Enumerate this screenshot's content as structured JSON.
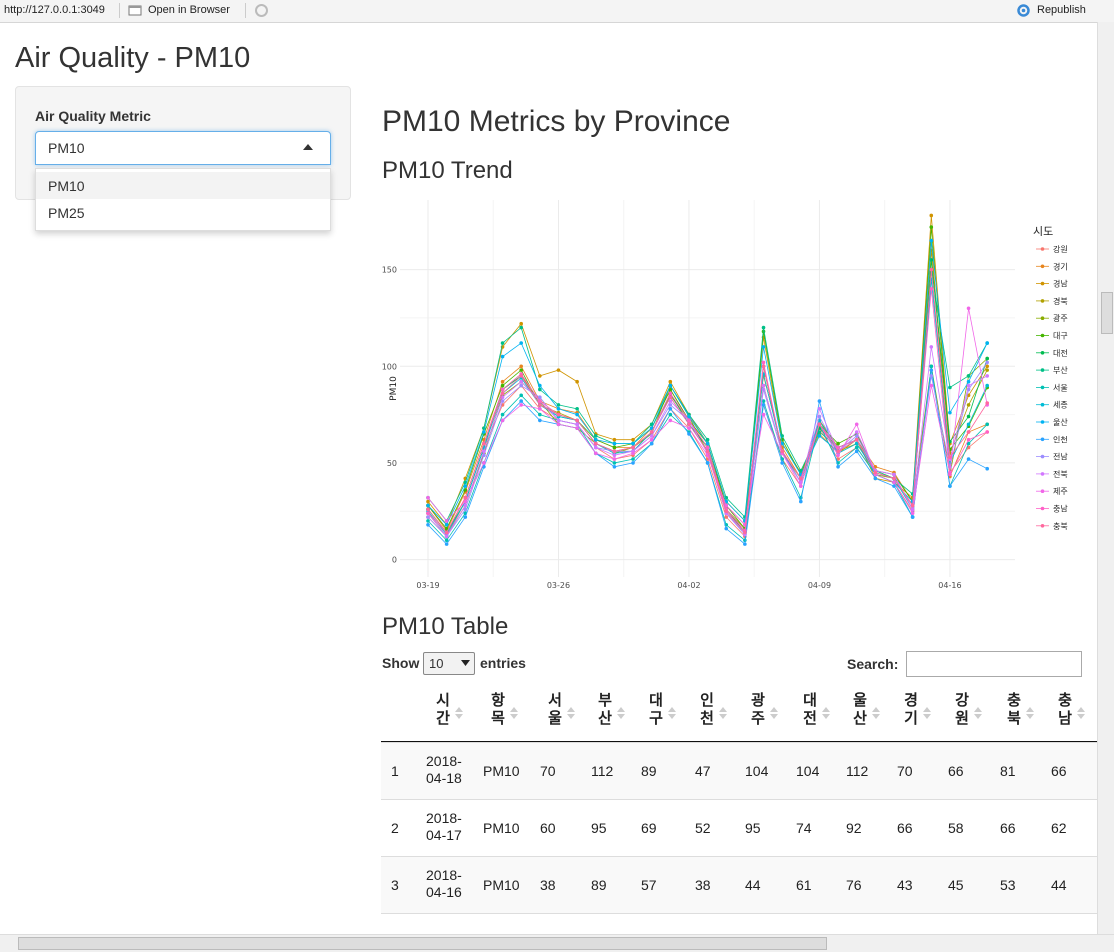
{
  "toolbar": {
    "url": "http://127.0.0.1:3049",
    "open_in_browser": "Open in Browser",
    "republish": "Republish"
  },
  "app_title": "Air Quality - PM10",
  "sidebar": {
    "label": "Air Quality Metric",
    "selected": "PM10",
    "options": [
      "PM10",
      "PM25"
    ]
  },
  "main_heading": "PM10 Metrics by Province",
  "trend_heading": "PM10 Trend",
  "table_heading": "PM10 Table",
  "chart_data": {
    "type": "line",
    "y_label": "PM10",
    "legend_title": "시도",
    "x": [
      "03-19",
      "03-20",
      "03-21",
      "03-22",
      "03-23",
      "03-24",
      "03-25",
      "03-26",
      "03-27",
      "03-28",
      "03-29",
      "03-30",
      "03-31",
      "04-01",
      "04-02",
      "04-03",
      "04-04",
      "04-05",
      "04-06",
      "04-07",
      "04-08",
      "04-09",
      "04-10",
      "04-11",
      "04-12",
      "04-13",
      "04-14",
      "04-15",
      "04-16",
      "04-17",
      "04-18"
    ],
    "ylim": [
      -9,
      186
    ],
    "yticks": [
      0,
      50,
      100,
      150
    ],
    "grid": true,
    "series": [
      {
        "name": "강원",
        "color": "#F8766D",
        "values": [
          22,
          12,
          30,
          58,
          80,
          90,
          78,
          72,
          70,
          58,
          52,
          54,
          62,
          78,
          68,
          52,
          22,
          12,
          80,
          52,
          38,
          68,
          52,
          58,
          44,
          40,
          25,
          150,
          45,
          58,
          66
        ]
      },
      {
        "name": "경기",
        "color": "#E7851E",
        "values": [
          28,
          15,
          35,
          62,
          92,
          100,
          82,
          78,
          76,
          62,
          58,
          58,
          68,
          88,
          72,
          58,
          28,
          18,
          95,
          58,
          42,
          72,
          58,
          62,
          48,
          45,
          30,
          165,
          43,
          66,
          70
        ]
      },
      {
        "name": "경남",
        "color": "#D09400",
        "values": [
          30,
          18,
          42,
          68,
          110,
          122,
          95,
          98,
          92,
          65,
          62,
          62,
          70,
          92,
          75,
          60,
          30,
          20,
          115,
          60,
          45,
          65,
          55,
          62,
          42,
          40,
          32,
          178,
          60,
          85,
          100
        ]
      },
      {
        "name": "경북",
        "color": "#B2A100",
        "values": [
          26,
          14,
          32,
          60,
          88,
          96,
          80,
          76,
          72,
          60,
          56,
          56,
          66,
          85,
          72,
          56,
          26,
          16,
          100,
          55,
          40,
          70,
          56,
          60,
          46,
          42,
          28,
          160,
          55,
          80,
          98
        ]
      },
      {
        "name": "광주",
        "color": "#89AC00",
        "values": [
          24,
          12,
          28,
          55,
          85,
          92,
          82,
          70,
          68,
          60,
          55,
          58,
          65,
          90,
          74,
          55,
          24,
          14,
          90,
          55,
          42,
          72,
          58,
          62,
          44,
          42,
          28,
          100,
          44,
          95,
          104
        ]
      },
      {
        "name": "대구",
        "color": "#45B500",
        "values": [
          28,
          16,
          36,
          65,
          90,
          98,
          80,
          75,
          72,
          62,
          58,
          60,
          68,
          88,
          72,
          60,
          28,
          16,
          118,
          62,
          44,
          70,
          60,
          65,
          46,
          44,
          30,
          172,
          57,
          69,
          89
        ]
      },
      {
        "name": "대전",
        "color": "#00BC51",
        "values": [
          26,
          14,
          30,
          58,
          88,
          95,
          80,
          74,
          72,
          60,
          56,
          58,
          66,
          86,
          70,
          58,
          26,
          14,
          100,
          56,
          42,
          68,
          58,
          62,
          45,
          42,
          28,
          155,
          61,
          74,
          104
        ]
      },
      {
        "name": "부산",
        "color": "#00C087",
        "values": [
          32,
          20,
          40,
          68,
          112,
          120,
          88,
          80,
          78,
          64,
          60,
          60,
          70,
          90,
          75,
          62,
          32,
          22,
          120,
          64,
          46,
          66,
          58,
          62,
          46,
          42,
          34,
          150,
          89,
          95,
          112
        ]
      },
      {
        "name": "서울",
        "color": "#00C0B2",
        "values": [
          20,
          10,
          24,
          50,
          75,
          85,
          75,
          72,
          70,
          55,
          50,
          52,
          60,
          75,
          66,
          50,
          18,
          10,
          82,
          52,
          32,
          70,
          50,
          58,
          44,
          40,
          22,
          100,
          38,
          60,
          70
        ]
      },
      {
        "name": "세종",
        "color": "#00BCD6",
        "values": [
          25,
          13,
          30,
          58,
          86,
          94,
          80,
          74,
          72,
          60,
          55,
          56,
          66,
          84,
          70,
          56,
          24,
          13,
          96,
          56,
          40,
          72,
          55,
          60,
          45,
          42,
          26,
          145,
          50,
          70,
          90
        ]
      },
      {
        "name": "울산",
        "color": "#00B3F2",
        "values": [
          28,
          18,
          38,
          66,
          105,
          112,
          90,
          78,
          75,
          62,
          60,
          60,
          68,
          90,
          74,
          60,
          30,
          20,
          110,
          60,
          44,
          64,
          56,
          62,
          44,
          40,
          30,
          165,
          76,
          92,
          112
        ]
      },
      {
        "name": "인천",
        "color": "#29A3FF",
        "values": [
          18,
          8,
          22,
          48,
          72,
          82,
          72,
          70,
          68,
          55,
          48,
          50,
          60,
          78,
          65,
          50,
          16,
          8,
          80,
          50,
          30,
          82,
          48,
          56,
          42,
          38,
          22,
          98,
          38,
          52,
          47
        ]
      },
      {
        "name": "전남",
        "color": "#9C8DFF",
        "values": [
          22,
          12,
          26,
          54,
          82,
          90,
          84,
          72,
          70,
          58,
          56,
          56,
          64,
          80,
          72,
          55,
          24,
          14,
          88,
          55,
          40,
          74,
          56,
          64,
          46,
          44,
          26,
          95,
          48,
          88,
          102
        ]
      },
      {
        "name": "전북",
        "color": "#D277FF",
        "values": [
          24,
          12,
          28,
          56,
          84,
          92,
          82,
          72,
          70,
          58,
          54,
          56,
          64,
          82,
          72,
          55,
          24,
          13,
          90,
          55,
          40,
          78,
          56,
          66,
          46,
          44,
          26,
          110,
          52,
          90,
          95
        ]
      },
      {
        "name": "제주",
        "color": "#F166E8",
        "values": [
          32,
          20,
          30,
          50,
          72,
          80,
          78,
          70,
          68,
          55,
          52,
          55,
          62,
          72,
          68,
          54,
          28,
          18,
          75,
          55,
          38,
          70,
          54,
          70,
          44,
          40,
          24,
          90,
          45,
          130,
          80
        ]
      },
      {
        "name": "충남",
        "color": "#FF61C7",
        "values": [
          24,
          14,
          32,
          60,
          88,
          96,
          82,
          75,
          72,
          60,
          56,
          58,
          66,
          86,
          72,
          58,
          26,
          15,
          102,
          56,
          42,
          70,
          58,
          62,
          45,
          42,
          28,
          140,
          44,
          62,
          66
        ]
      },
      {
        "name": "충북",
        "color": "#FF689E",
        "values": [
          26,
          14,
          32,
          60,
          86,
          95,
          80,
          75,
          72,
          60,
          56,
          58,
          66,
          84,
          70,
          56,
          25,
          14,
          100,
          56,
          42,
          70,
          56,
          62,
          45,
          42,
          28,
          150,
          53,
          66,
          81
        ]
      }
    ]
  },
  "table_controls": {
    "show": "Show",
    "length": "10",
    "entries": "entries",
    "search": "Search:"
  },
  "table": {
    "columns": [
      "시간",
      "항목",
      "서울",
      "부산",
      "대구",
      "인천",
      "광주",
      "대전",
      "울산",
      "경기",
      "강원",
      "충북",
      "충남"
    ],
    "rows": [
      [
        1,
        "2018-04-18",
        "PM10",
        70,
        112,
        89,
        47,
        104,
        104,
        112,
        70,
        66,
        81,
        66
      ],
      [
        2,
        "2018-04-17",
        "PM10",
        60,
        95,
        69,
        52,
        95,
        74,
        92,
        66,
        58,
        66,
        62
      ],
      [
        3,
        "2018-04-16",
        "PM10",
        38,
        89,
        57,
        38,
        44,
        61,
        76,
        43,
        45,
        53,
        44
      ]
    ]
  }
}
